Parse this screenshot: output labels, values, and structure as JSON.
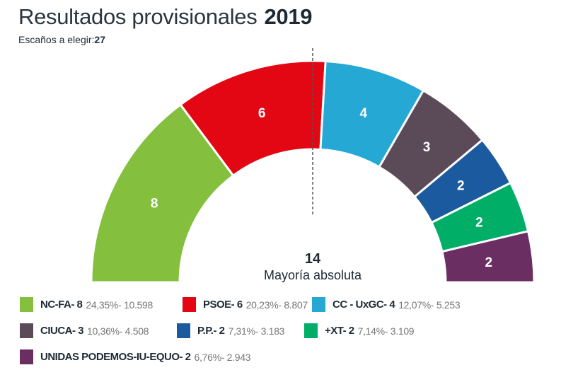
{
  "title": "Resultados provisionales",
  "year": "2019",
  "subtitle_label": "Escaños a elegir:",
  "subtitle_value": "27",
  "majority": {
    "value": "14",
    "label": "Mayoría absoluta"
  },
  "chart_data": {
    "type": "pie",
    "variant": "half-donut parliament",
    "total_seats": 27,
    "majority": 14,
    "series": [
      {
        "name": "NC-FA",
        "seats": 8,
        "pct": "24,35%",
        "votes": "10.598",
        "color": "#84bf3e"
      },
      {
        "name": "PSOE",
        "seats": 6,
        "pct": "20,23%",
        "votes": "8.807",
        "color": "#e30613"
      },
      {
        "name": "CC - UxGC",
        "seats": 4,
        "pct": "12,07%",
        "votes": "5.253",
        "color": "#25a9d4"
      },
      {
        "name": "CIUCA",
        "seats": 3,
        "pct": "10,36%",
        "votes": "4.508",
        "color": "#5b4b59"
      },
      {
        "name": "P.P.",
        "seats": 2,
        "pct": "7,31%",
        "votes": "3.183",
        "color": "#1b5a9e"
      },
      {
        "name": "+XT",
        "seats": 2,
        "pct": "7,14%",
        "votes": "3.109",
        "color": "#00ae68"
      },
      {
        "name": "UNIDAS PODEMOS-IU-EQUO",
        "seats": 2,
        "pct": "6,76%",
        "votes": "2.943",
        "color": "#6a2e62"
      }
    ]
  }
}
